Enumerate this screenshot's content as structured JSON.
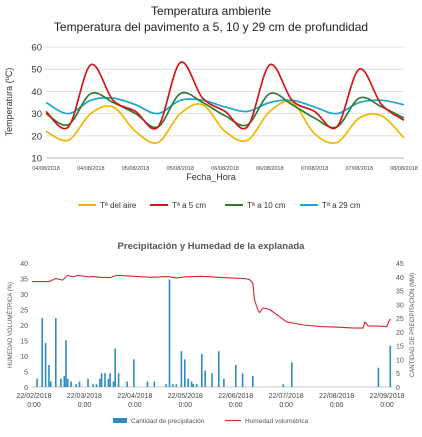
{
  "chart_data": [
    {
      "type": "line",
      "title": "Temperatura ambiente",
      "subtitle": "Temperatura del pavimento a 5, 10 y 29 cm  de profundidad",
      "xlabel": "Fecha_Hora",
      "ylabel": "Temperatura (ºC)",
      "ylim": [
        10,
        60
      ],
      "y_ticks": [
        10,
        20,
        30,
        40,
        50,
        60
      ],
      "x_tick_labels": [
        "04/08/2018",
        "04/08/2018",
        "05/08/2018",
        "05/08/2018",
        "06/08/2018",
        "06/08/2018",
        "07/08/2018",
        "07/08/2018",
        "08/08/2018"
      ],
      "grid": "horizontal",
      "legend_position": "bottom",
      "x_days": [
        0,
        0.25,
        0.5,
        0.75,
        1,
        1.25,
        1.5,
        1.75,
        2,
        2.25,
        2.5,
        2.75,
        3,
        3.25,
        3.5,
        3.75,
        4
      ],
      "series": [
        {
          "name": "Tª del aire",
          "color": "#f0b800",
          "values": [
            22,
            18,
            30,
            33,
            22,
            17,
            30,
            34,
            22,
            18,
            31,
            35,
            21,
            17,
            28,
            29,
            19
          ]
        },
        {
          "name": "Tª a 5 cm",
          "color": "#d0181c",
          "values": [
            31,
            24,
            52,
            36,
            31,
            24,
            53,
            37,
            31,
            24,
            52,
            36,
            31,
            24,
            50,
            34,
            27
          ]
        },
        {
          "name": "Tª a 10 cm",
          "color": "#2e7d32",
          "values": [
            30,
            25,
            39,
            35,
            30,
            24,
            39,
            35,
            29,
            25,
            39,
            34,
            28,
            24,
            37,
            33,
            28
          ]
        },
        {
          "name": "Tª a 29 cm",
          "color": "#1aa7c9",
          "values": [
            35,
            30,
            36,
            37,
            34,
            30,
            36,
            36,
            33,
            31,
            35,
            36,
            33,
            30,
            35,
            36,
            34
          ]
        }
      ]
    },
    {
      "type": "bar",
      "title": "Precipitación  y Humedad  de la explanada",
      "ylabel_left": "HUMEDAD VOLUMÉTRICA (%)",
      "ylabel_right": "CANTIDAD DE PRECIPITACIÓN (MM)",
      "ylim_left": [
        0,
        40
      ],
      "ylim_right": [
        0,
        45
      ],
      "y_ticks_left": [
        0,
        5,
        10,
        15,
        20,
        25,
        30,
        35,
        40
      ],
      "y_ticks_right": [
        0,
        5,
        10,
        15,
        20,
        25,
        30,
        35,
        40,
        45
      ],
      "x_tick_labels": [
        [
          "22/02/2018",
          "0:00"
        ],
        [
          "22/03/2018",
          "0:00"
        ],
        [
          "22/04/2018",
          "0:00"
        ],
        [
          "22/05/2018",
          "0:00"
        ],
        [
          "22/06/2018",
          "0:00"
        ],
        [
          "22/07/2018",
          "0:00"
        ],
        [
          "22/08/2018",
          "0:00"
        ],
        [
          "22/09/2018",
          "0:00"
        ]
      ],
      "x_range_days": [
        0,
        212
      ],
      "legend_position": "bottom",
      "series": [
        {
          "name": "Cantidad de precipitación",
          "kind": "bar",
          "axis": "right",
          "color": "#2e8bc0",
          "day": [
            3,
            6,
            8,
            10,
            11,
            14,
            17,
            19,
            20,
            21,
            23,
            26,
            28,
            33,
            36,
            38,
            40,
            41,
            43,
            45,
            46,
            48,
            49,
            51,
            56,
            60,
            68,
            72,
            79,
            81,
            83,
            85,
            88,
            90,
            92,
            94,
            95,
            97,
            100,
            102,
            106,
            110,
            113,
            120,
            124,
            130,
            148,
            153,
            204,
            211
          ],
          "values": [
            3,
            25,
            16,
            8,
            2,
            25,
            3,
            4,
            17,
            3,
            2,
            1,
            2,
            3,
            1,
            1,
            3,
            5,
            5,
            3,
            5,
            2,
            14,
            5,
            2,
            10,
            2,
            2,
            1,
            39,
            1,
            1,
            13,
            10,
            3,
            2,
            1,
            1,
            12,
            6,
            5,
            13,
            3,
            8,
            5,
            4,
            1,
            9,
            7,
            15
          ]
        },
        {
          "name": "Humedad volumétrica",
          "kind": "line",
          "axis": "left",
          "color": "#d9262c",
          "day": [
            0,
            10,
            14,
            18,
            21,
            24,
            27,
            30,
            33,
            36,
            40,
            46,
            50,
            54,
            60,
            70,
            80,
            85,
            90,
            100,
            110,
            120,
            125,
            128,
            130,
            131,
            133,
            134,
            136,
            140,
            145,
            150,
            160,
            170,
            180,
            190,
            195,
            196,
            198,
            205,
            209,
            210,
            211
          ],
          "values": [
            34,
            34,
            35,
            34.5,
            36,
            35.5,
            36,
            35.8,
            35.5,
            35.6,
            35.4,
            35.3,
            36,
            35.9,
            35.7,
            35.4,
            35.6,
            35.2,
            35.5,
            35.7,
            35.4,
            35.1,
            35,
            34.7,
            33.5,
            28,
            25,
            24,
            25.5,
            25,
            23,
            21,
            20,
            19.5,
            19.3,
            19,
            19,
            21,
            19.7,
            19.6,
            19.5,
            21,
            22
          ]
        }
      ]
    }
  ]
}
